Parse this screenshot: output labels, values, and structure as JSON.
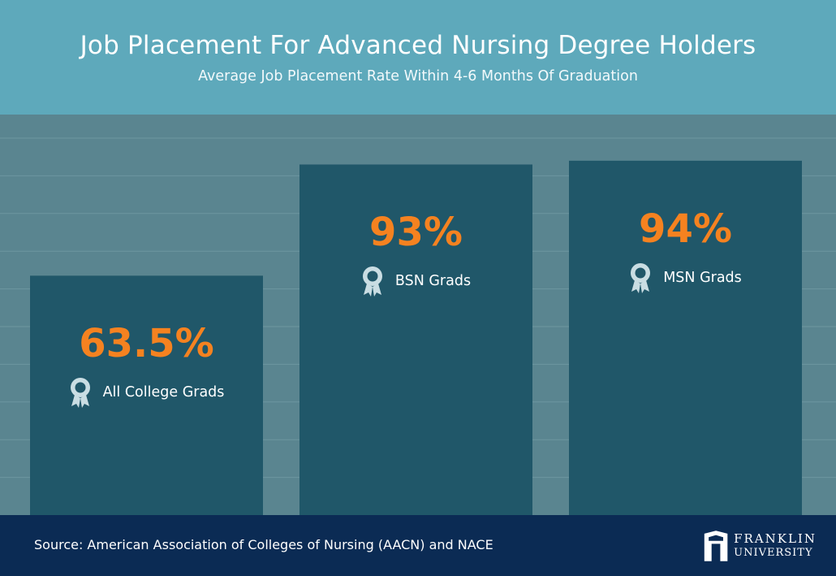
{
  "header": {
    "title": "Job Placement For Advanced Nursing Degree Holders",
    "subtitle": "Average Job Placement Rate Within 4-6 Months Of Graduation"
  },
  "chart_data": {
    "type": "bar",
    "title": "Job Placement For Advanced Nursing Degree Holders",
    "subtitle": "Average Job Placement Rate Within 4-6 Months Of Graduation",
    "categories": [
      "All College Grads",
      "BSN Grads",
      "MSN Grads"
    ],
    "values": [
      63.5,
      93,
      94
    ],
    "value_labels": [
      "63.5%",
      "93%",
      "94%"
    ],
    "unit": "%",
    "ylim": [
      0,
      100
    ],
    "grid": true,
    "xlabel": "",
    "ylabel": ""
  },
  "footer": {
    "source": "Source: American Association of Colleges of Nursing (AACN) and NACE",
    "logo_line1": "FRANKLIN",
    "logo_line2": "UNIVERSITY"
  },
  "colors": {
    "header_bg": "#5ea9bb",
    "chart_bg": "#5a8590",
    "bar": "#205769",
    "value_text": "#f58220",
    "footer_bg": "#0b2b54",
    "grid": "#7ba2ab",
    "icon": "#c9dde3"
  },
  "icons": {
    "category": "award-ribbon-icon",
    "logo": "franklin-shield-icon"
  }
}
